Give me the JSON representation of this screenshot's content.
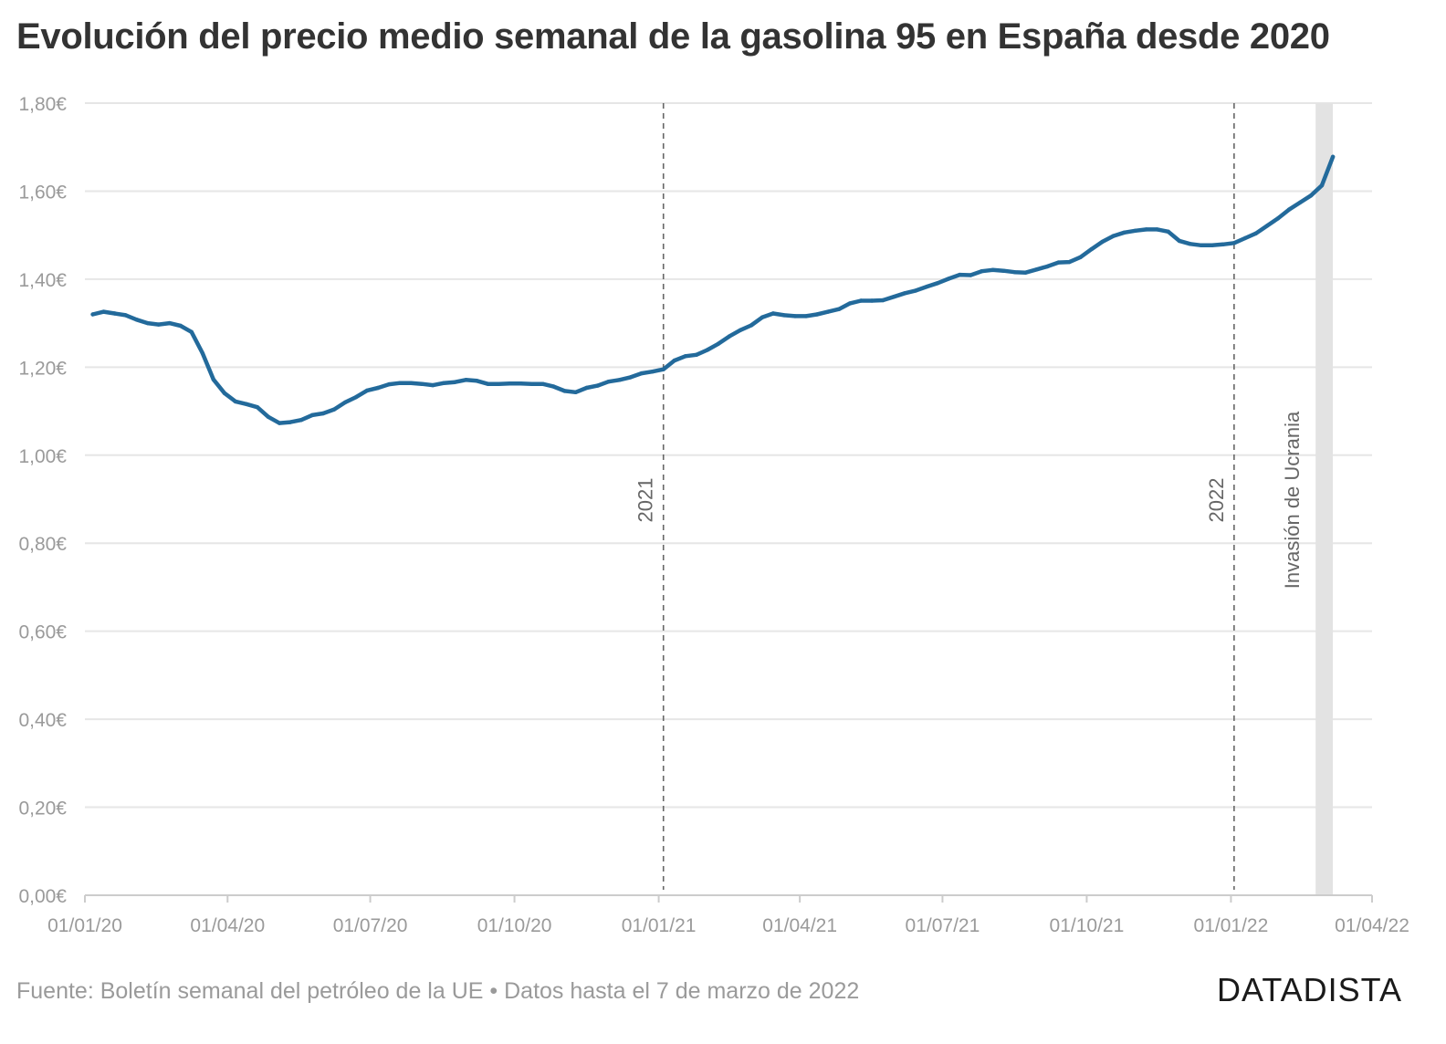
{
  "title": "Evolución del precio medio semanal de la gasolina 95 en España desde 2020",
  "footer": {
    "source": "Fuente: Boletín semanal del petróleo de la UE",
    "separator": "•",
    "data_until": "Datos hasta el 7 de marzo de 2022"
  },
  "brand": "DATADISTA",
  "colors": {
    "line": "#236a9b",
    "grid": "#e6e6e6",
    "axis_text": "#9a9a9a",
    "marker": "#666666",
    "band": "#e3e3e3"
  },
  "chart_data": {
    "type": "line",
    "title": "Evolución del precio medio semanal de la gasolina 95 en España desde 2020",
    "xlabel": "",
    "ylabel": "",
    "xlim": [
      "2020-01-01",
      "2022-04-01"
    ],
    "ylim": [
      0,
      1.8
    ],
    "grid": true,
    "y_ticks": [
      {
        "value": 0,
        "label": "0,00€"
      },
      {
        "value": 0.2,
        "label": "0,20€"
      },
      {
        "value": 0.4,
        "label": "0,40€"
      },
      {
        "value": 0.6,
        "label": "0,60€"
      },
      {
        "value": 0.8,
        "label": "0,80€"
      },
      {
        "value": 1.0,
        "label": "1,00€"
      },
      {
        "value": 1.2,
        "label": "1,20€"
      },
      {
        "value": 1.4,
        "label": "1,40€"
      },
      {
        "value": 1.6,
        "label": "1,60€"
      },
      {
        "value": 1.8,
        "label": "1,80€"
      }
    ],
    "x_ticks": [
      {
        "date": "2020-01-01",
        "label": "01/01/20"
      },
      {
        "date": "2020-04-01",
        "label": "01/04/20"
      },
      {
        "date": "2020-07-01",
        "label": "01/07/20"
      },
      {
        "date": "2020-10-01",
        "label": "01/10/20"
      },
      {
        "date": "2021-01-01",
        "label": "01/01/21"
      },
      {
        "date": "2021-04-01",
        "label": "01/04/21"
      },
      {
        "date": "2021-07-01",
        "label": "01/07/21"
      },
      {
        "date": "2021-10-01",
        "label": "01/10/21"
      },
      {
        "date": "2022-01-01",
        "label": "01/01/22"
      },
      {
        "date": "2022-04-01",
        "label": "01/04/22"
      }
    ],
    "annotations": [
      {
        "date": "2021-01-04",
        "label": "2021",
        "style": "dashed"
      },
      {
        "date": "2022-01-03",
        "label": "2022",
        "style": "dashed"
      },
      {
        "date": "2022-02-24",
        "date_end": "2022-03-07",
        "label": "Invasión de Ucrania",
        "style": "band"
      }
    ],
    "series": [
      {
        "values": [
          [
            "2020-01-06",
            1.32
          ],
          [
            "2020-01-13",
            1.326
          ],
          [
            "2020-01-20",
            1.322
          ],
          [
            "2020-01-27",
            1.318
          ],
          [
            "2020-02-03",
            1.308
          ],
          [
            "2020-02-10",
            1.3
          ],
          [
            "2020-02-17",
            1.297
          ],
          [
            "2020-02-24",
            1.3
          ],
          [
            "2020-03-02",
            1.294
          ],
          [
            "2020-03-09",
            1.28
          ],
          [
            "2020-03-16",
            1.232
          ],
          [
            "2020-03-23",
            1.172
          ],
          [
            "2020-03-30",
            1.141
          ],
          [
            "2020-04-06",
            1.122
          ],
          [
            "2020-04-13",
            1.116
          ],
          [
            "2020-04-20",
            1.109
          ],
          [
            "2020-04-27",
            1.087
          ],
          [
            "2020-05-04",
            1.073
          ],
          [
            "2020-05-11",
            1.075
          ],
          [
            "2020-05-18",
            1.08
          ],
          [
            "2020-05-25",
            1.091
          ],
          [
            "2020-06-01",
            1.095
          ],
          [
            "2020-06-08",
            1.104
          ],
          [
            "2020-06-15",
            1.12
          ],
          [
            "2020-06-22",
            1.132
          ],
          [
            "2020-06-29",
            1.147
          ],
          [
            "2020-07-06",
            1.153
          ],
          [
            "2020-07-13",
            1.161
          ],
          [
            "2020-07-20",
            1.164
          ],
          [
            "2020-07-27",
            1.164
          ],
          [
            "2020-08-03",
            1.162
          ],
          [
            "2020-08-10",
            1.159
          ],
          [
            "2020-08-17",
            1.164
          ],
          [
            "2020-08-24",
            1.166
          ],
          [
            "2020-08-31",
            1.171
          ],
          [
            "2020-09-07",
            1.169
          ],
          [
            "2020-09-14",
            1.162
          ],
          [
            "2020-09-21",
            1.162
          ],
          [
            "2020-09-28",
            1.163
          ],
          [
            "2020-10-05",
            1.163
          ],
          [
            "2020-10-12",
            1.162
          ],
          [
            "2020-10-19",
            1.162
          ],
          [
            "2020-10-26",
            1.156
          ],
          [
            "2020-11-02",
            1.146
          ],
          [
            "2020-11-09",
            1.143
          ],
          [
            "2020-11-16",
            1.153
          ],
          [
            "2020-11-23",
            1.158
          ],
          [
            "2020-11-30",
            1.167
          ],
          [
            "2020-12-07",
            1.171
          ],
          [
            "2020-12-14",
            1.177
          ],
          [
            "2020-12-21",
            1.186
          ],
          [
            "2020-12-28",
            1.19
          ],
          [
            "2021-01-04",
            1.195
          ],
          [
            "2021-01-11",
            1.215
          ],
          [
            "2021-01-18",
            1.225
          ],
          [
            "2021-01-25",
            1.228
          ],
          [
            "2021-02-01",
            1.239
          ],
          [
            "2021-02-08",
            1.253
          ],
          [
            "2021-02-15",
            1.27
          ],
          [
            "2021-02-22",
            1.284
          ],
          [
            "2021-03-01",
            1.295
          ],
          [
            "2021-03-08",
            1.313
          ],
          [
            "2021-03-15",
            1.322
          ],
          [
            "2021-03-22",
            1.318
          ],
          [
            "2021-03-29",
            1.316
          ],
          [
            "2021-04-05",
            1.316
          ],
          [
            "2021-04-12",
            1.32
          ],
          [
            "2021-04-19",
            1.326
          ],
          [
            "2021-04-26",
            1.332
          ],
          [
            "2021-05-03",
            1.345
          ],
          [
            "2021-05-10",
            1.351
          ],
          [
            "2021-05-17",
            1.351
          ],
          [
            "2021-05-24",
            1.352
          ],
          [
            "2021-05-31",
            1.36
          ],
          [
            "2021-06-07",
            1.368
          ],
          [
            "2021-06-14",
            1.374
          ],
          [
            "2021-06-21",
            1.383
          ],
          [
            "2021-06-28",
            1.391
          ],
          [
            "2021-07-05",
            1.401
          ],
          [
            "2021-07-12",
            1.41
          ],
          [
            "2021-07-19",
            1.409
          ],
          [
            "2021-07-26",
            1.418
          ],
          [
            "2021-08-02",
            1.421
          ],
          [
            "2021-08-09",
            1.419
          ],
          [
            "2021-08-16",
            1.416
          ],
          [
            "2021-08-23",
            1.415
          ],
          [
            "2021-08-30",
            1.422
          ],
          [
            "2021-09-06",
            1.429
          ],
          [
            "2021-09-13",
            1.438
          ],
          [
            "2021-09-20",
            1.439
          ],
          [
            "2021-09-27",
            1.45
          ],
          [
            "2021-10-04",
            1.468
          ],
          [
            "2021-10-11",
            1.485
          ],
          [
            "2021-10-18",
            1.498
          ],
          [
            "2021-10-25",
            1.506
          ],
          [
            "2021-11-01",
            1.51
          ],
          [
            "2021-11-08",
            1.513
          ],
          [
            "2021-11-15",
            1.513
          ],
          [
            "2021-11-22",
            1.508
          ],
          [
            "2021-11-29",
            1.487
          ],
          [
            "2021-12-06",
            1.48
          ],
          [
            "2021-12-13",
            1.477
          ],
          [
            "2021-12-20",
            1.477
          ],
          [
            "2021-12-27",
            1.479
          ],
          [
            "2022-01-03",
            1.482
          ],
          [
            "2022-01-10",
            1.493
          ],
          [
            "2022-01-17",
            1.504
          ],
          [
            "2022-01-24",
            1.521
          ],
          [
            "2022-01-31",
            1.538
          ],
          [
            "2022-02-07",
            1.558
          ],
          [
            "2022-02-14",
            1.574
          ],
          [
            "2022-02-21",
            1.59
          ],
          [
            "2022-02-28",
            1.613
          ],
          [
            "2022-03-07",
            1.678
          ]
        ]
      }
    ]
  }
}
